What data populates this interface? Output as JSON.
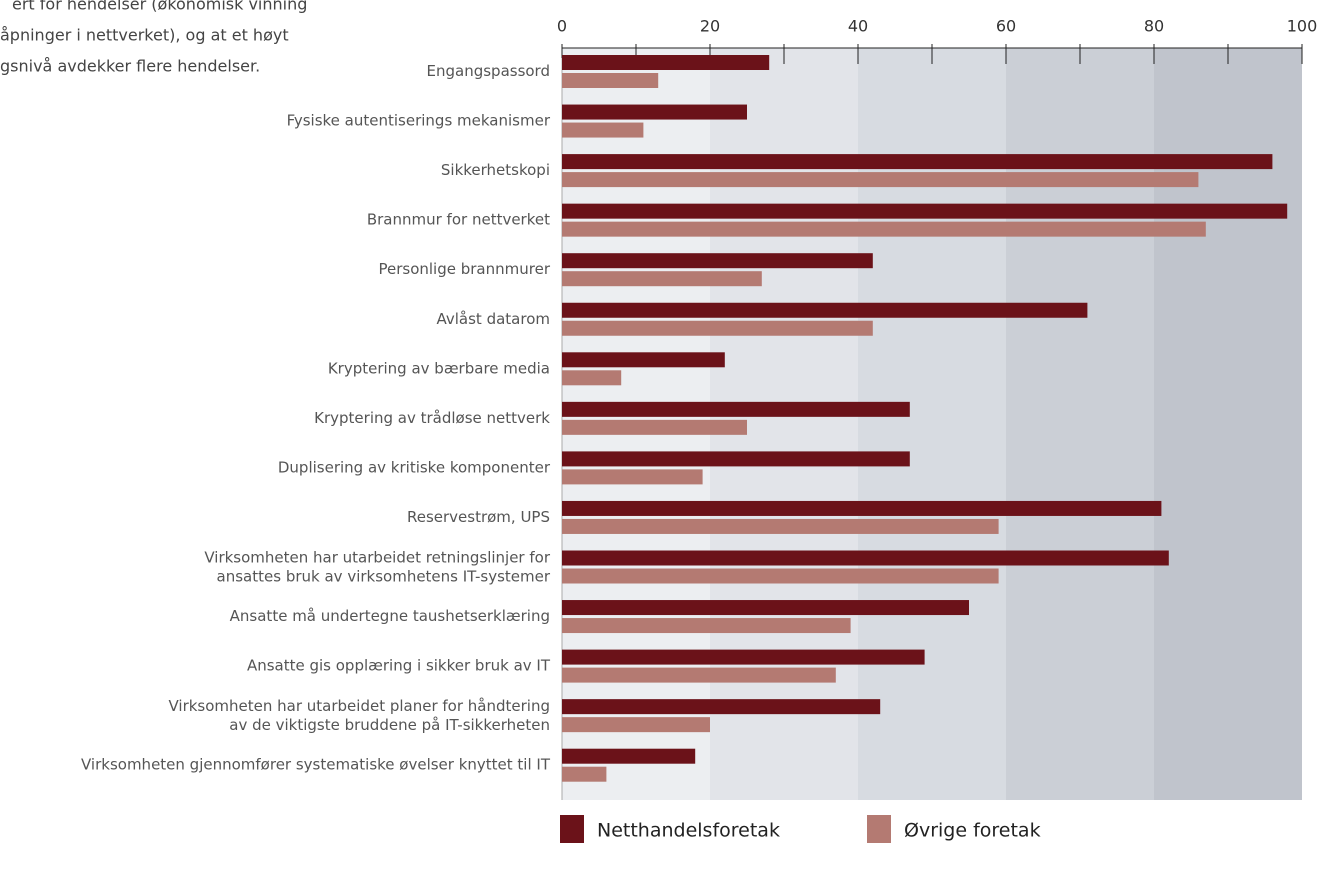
{
  "chart_data": {
    "type": "bar",
    "orientation": "horizontal",
    "annotations": [
      "ert for hendelser (økonomisk vinning",
      "åpninger i nettverket), og at et høyt",
      "gsnivå avdekker flere hendelser."
    ],
    "categories": [
      "Engangspassord",
      "Fysiske autentiserings mekanismer",
      "Sikkerhetskopi",
      "Brannmur for nettverket",
      "Personlige brannmurer",
      "Avlåst datarom",
      "Kryptering av bærbare media",
      "Kryptering av trådløse nettverk",
      "Duplisering av kritiske komponenter",
      "Reservestrøm, UPS",
      "Virksomheten har utarbeidet retningslinjer for\nansattes bruk av virksomhetens IT-systemer",
      "Ansatte må undertegne taushetserklæring",
      "Ansatte gis opplæring i sikker bruk av IT",
      "Virksomheten har utarbeidet planer for håndtering\nav de viktigste bruddene på IT-sikkerheten",
      "Virksomheten gjennomfører systematiske øvelser knyttet til IT"
    ],
    "series": [
      {
        "name": "Netthandelsforetak",
        "color": "#6b1219",
        "values": [
          28,
          25,
          96,
          98,
          42,
          71,
          22,
          47,
          47,
          81,
          82,
          55,
          49,
          43,
          18
        ]
      },
      {
        "name": "Øvrige foretak",
        "color": "#b47a72",
        "values": [
          13,
          11,
          86,
          87,
          27,
          42,
          8,
          25,
          19,
          59,
          59,
          39,
          37,
          20,
          6
        ]
      }
    ],
    "xlim": [
      0,
      100
    ],
    "xticks": [
      0,
      20,
      40,
      60,
      80,
      100
    ],
    "band_colors": [
      "#eceef1",
      "#e2e4e9",
      "#d7dbe1",
      "#cbcfd6",
      "#c0c4cc"
    ],
    "legend": "bottom"
  }
}
